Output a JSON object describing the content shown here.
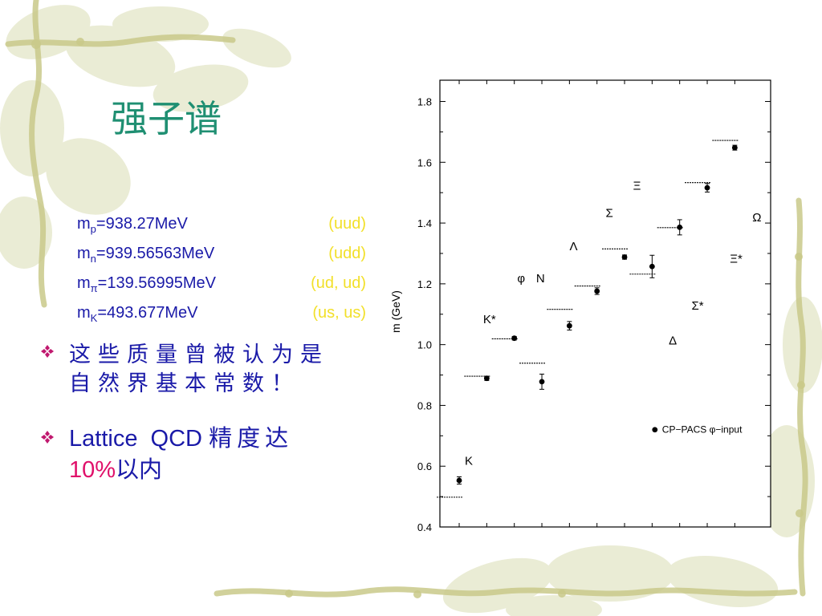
{
  "slide": {
    "title": "强子谱",
    "masses": [
      {
        "symbol": "m",
        "sub": "p",
        "value": "=938.27MeV",
        "quarks": "(uud)"
      },
      {
        "symbol": "m",
        "sub": "n",
        "value": "=939.56563MeV",
        "quarks": "(udd)"
      },
      {
        "symbol": "m",
        "sub": "π",
        "value": "=139.56995MeV",
        "quarks": "(ud, ud)"
      },
      {
        "symbol": "m",
        "sub": "K",
        "value": "=493.677MeV",
        "quarks": "(us, us)"
      }
    ],
    "bullets": {
      "b1_line1": "这些质量曾被认为是",
      "b1_line2": "自然界基本常数！",
      "b2_text": "Lattice  QCD",
      "b2_cjk": "精度达",
      "b2_pct": "10%",
      "b2_tail": "以内"
    },
    "colors": {
      "title": "#1f8f72",
      "text": "#1a1aa8",
      "quarks": "#f2e02a",
      "highlight": "#e0106a",
      "bullet_icon": "#c0186e"
    },
    "icons": {
      "bullet": "diamond-cluster-icon"
    }
  },
  "chart_data": {
    "type": "scatter",
    "ylabel": "m (GeV)",
    "ylim": [
      0.4,
      1.87
    ],
    "yticks": [
      "0.4",
      "0.6",
      "0.8",
      "1.0",
      "1.2",
      "1.4",
      "1.6",
      "1.8"
    ],
    "grid": false,
    "legend": {
      "label": "CP−PACS φ−input",
      "placement": "bottom-right"
    },
    "series": [
      {
        "name": "CP−PACS φ−input",
        "points": [
          {
            "x": 1,
            "y": 0.553,
            "err": 0.012,
            "label": "K",
            "exp": 0.498
          },
          {
            "x": 2,
            "y": 0.889,
            "err": 0.007,
            "label": "K*",
            "exp": 0.896
          },
          {
            "x": 3,
            "y": 1.021,
            "err": 0.006,
            "label": "φ",
            "exp": 1.019
          },
          {
            "x": 4,
            "y": 0.878,
            "err": 0.025,
            "label": "N",
            "exp": 0.939
          },
          {
            "x": 5,
            "y": 1.062,
            "err": 0.014,
            "label": "Λ",
            "exp": 1.116
          },
          {
            "x": 6,
            "y": 1.176,
            "err": 0.011,
            "label": "Σ",
            "exp": 1.193
          },
          {
            "x": 7,
            "y": 1.288,
            "err": 0.007,
            "label": "Ξ",
            "exp": 1.315
          },
          {
            "x": 8,
            "y": 1.257,
            "err": 0.037,
            "label": "Δ",
            "exp": 1.232
          },
          {
            "x": 9,
            "y": 1.386,
            "err": 0.025,
            "label": "Σ*",
            "exp": 1.385
          },
          {
            "x": 10,
            "y": 1.516,
            "err": 0.014,
            "label": "Ξ*",
            "exp": 1.533
          },
          {
            "x": 11,
            "y": 1.648,
            "err": 0.008,
            "label": "Ω",
            "exp": 1.672
          }
        ]
      }
    ],
    "annotations": [
      {
        "text": "K",
        "x": 1.35,
        "y": 0.605
      },
      {
        "text": "K*",
        "x": 2.1,
        "y": 1.07
      },
      {
        "text": "φ",
        "x": 3.25,
        "y": 1.205
      },
      {
        "text": "N",
        "x": 3.95,
        "y": 1.205
      },
      {
        "text": "Λ",
        "x": 5.15,
        "y": 1.31
      },
      {
        "text": "Σ",
        "x": 6.45,
        "y": 1.42
      },
      {
        "text": "Ξ",
        "x": 7.45,
        "y": 1.51
      },
      {
        "text": "Δ",
        "x": 8.75,
        "y": 1.0
      },
      {
        "text": "Σ*",
        "x": 9.65,
        "y": 1.115
      },
      {
        "text": "Ξ*",
        "x": 11.05,
        "y": 1.27
      },
      {
        "text": "Ω",
        "x": 11.8,
        "y": 1.405
      }
    ]
  }
}
